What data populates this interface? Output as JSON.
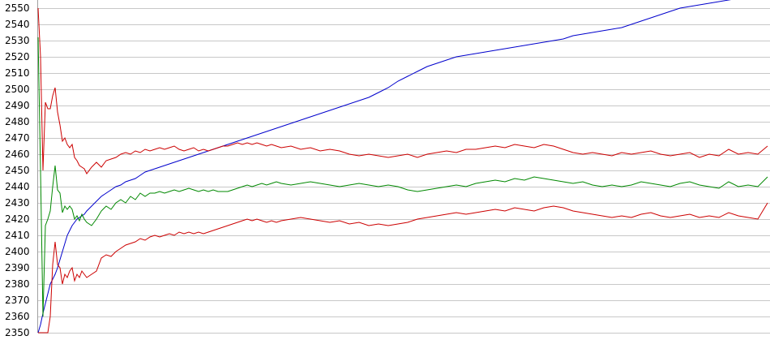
{
  "chart_data": {
    "type": "line",
    "title": "",
    "xlabel": "",
    "ylabel": "",
    "ylim": [
      2350,
      2550
    ],
    "yticks": [
      2550,
      2540,
      2530,
      2520,
      2510,
      2500,
      2490,
      2480,
      2470,
      2460,
      2450,
      2440,
      2430,
      2420,
      2410,
      2400,
      2390,
      2380,
      2370,
      2360,
      2350
    ],
    "grid": true,
    "legend": "none",
    "x": [
      0,
      1,
      2,
      3,
      4,
      5,
      6,
      7,
      8,
      9,
      10,
      11,
      12,
      13,
      14,
      15,
      16,
      17,
      18,
      19,
      20,
      22,
      24,
      26,
      28,
      30,
      32,
      34,
      36,
      38,
      40,
      42,
      44,
      46,
      48,
      50,
      52,
      54,
      56,
      58,
      60,
      62,
      64,
      66,
      68,
      70,
      72,
      74,
      76,
      78,
      80,
      82,
      84,
      86,
      88,
      90,
      92,
      94,
      96,
      98,
      100,
      104,
      108,
      112,
      116,
      120,
      124,
      128,
      132,
      136,
      140,
      144,
      148,
      152,
      156,
      160,
      164,
      168,
      172,
      176,
      180,
      184,
      188,
      192,
      196,
      200,
      204,
      208,
      212,
      216,
      220,
      224,
      228,
      232,
      236,
      240,
      244,
      248,
      252,
      256,
      260,
      264,
      268,
      272,
      276,
      280,
      284,
      288,
      292,
      296,
      300
    ],
    "series": [
      {
        "color": "#0000cc",
        "values": [
          2350,
          2355,
          2362,
          2368,
          2374,
          2380,
          2383,
          2386,
          2390,
          2395,
          2400,
          2405,
          2410,
          2413,
          2416,
          2418,
          2420,
          2421,
          2422,
          2423,
          2425,
          2428,
          2431,
          2434,
          2436,
          2438,
          2440,
          2441,
          2443,
          2444,
          2445,
          2447,
          2449,
          2450,
          2451,
          2452,
          2453,
          2454,
          2455,
          2456,
          2457,
          2458,
          2459,
          2460,
          2461,
          2462,
          2463,
          2464,
          2465,
          2466,
          2467,
          2468,
          2469,
          2470,
          2471,
          2472,
          2473,
          2474,
          2475,
          2476,
          2477,
          2479,
          2481,
          2483,
          2485,
          2487,
          2489,
          2491,
          2493,
          2495,
          2498,
          2501,
          2505,
          2508,
          2511,
          2514,
          2516,
          2518,
          2520,
          2521,
          2522,
          2523,
          2524,
          2525,
          2526,
          2527,
          2528,
          2529,
          2530,
          2531,
          2533,
          2534,
          2535,
          2536,
          2537,
          2538,
          2540,
          2542,
          2544,
          2546,
          2548,
          2550,
          2551,
          2552,
          2553,
          2554,
          2555,
          2556,
          2557,
          2558,
          2559
        ]
      },
      {
        "color": "#cc0000",
        "values": [
          2550,
          2520,
          2450,
          2492,
          2488,
          2488,
          2496,
          2501,
          2486,
          2478,
          2468,
          2470,
          2466,
          2464,
          2466,
          2458,
          2456,
          2453,
          2452,
          2451,
          2448,
          2452,
          2455,
          2452,
          2456,
          2457,
          2458,
          2460,
          2461,
          2460,
          2462,
          2461,
          2463,
          2462,
          2463,
          2464,
          2463,
          2464,
          2465,
          2463,
          2462,
          2463,
          2464,
          2462,
          2463,
          2462,
          2463,
          2464,
          2465,
          2465,
          2466,
          2467,
          2466,
          2467,
          2466,
          2467,
          2466,
          2465,
          2466,
          2465,
          2464,
          2465,
          2463,
          2464,
          2462,
          2463,
          2462,
          2460,
          2459,
          2460,
          2459,
          2458,
          2459,
          2460,
          2458,
          2460,
          2461,
          2462,
          2461,
          2463,
          2463,
          2464,
          2465,
          2464,
          2466,
          2465,
          2464,
          2466,
          2465,
          2463,
          2461,
          2460,
          2461,
          2460,
          2459,
          2461,
          2460,
          2461,
          2462,
          2460,
          2459,
          2460,
          2461,
          2458,
          2460,
          2459,
          2463,
          2460,
          2461,
          2460,
          2465
        ]
      },
      {
        "color": "#008800",
        "values": [
          2532,
          2450,
          2360,
          2416,
          2420,
          2425,
          2440,
          2453,
          2438,
          2436,
          2424,
          2428,
          2426,
          2428,
          2426,
          2420,
          2422,
          2419,
          2423,
          2420,
          2418,
          2416,
          2420,
          2425,
          2428,
          2426,
          2430,
          2432,
          2430,
          2434,
          2432,
          2436,
          2434,
          2436,
          2436,
          2437,
          2436,
          2437,
          2438,
          2437,
          2438,
          2439,
          2438,
          2437,
          2438,
          2437,
          2438,
          2437,
          2437,
          2437,
          2438,
          2439,
          2440,
          2441,
          2440,
          2441,
          2442,
          2441,
          2442,
          2443,
          2442,
          2441,
          2442,
          2443,
          2442,
          2441,
          2440,
          2441,
          2442,
          2441,
          2440,
          2441,
          2440,
          2438,
          2437,
          2438,
          2439,
          2440,
          2441,
          2440,
          2442,
          2443,
          2444,
          2443,
          2445,
          2444,
          2446,
          2445,
          2444,
          2443,
          2442,
          2443,
          2441,
          2440,
          2441,
          2440,
          2441,
          2443,
          2442,
          2441,
          2440,
          2442,
          2443,
          2441,
          2440,
          2439,
          2443,
          2440,
          2441,
          2440,
          2446
        ]
      },
      {
        "color": "#cc0000",
        "values": [
          2350,
          2350,
          2350,
          2350,
          2350,
          2360,
          2392,
          2406,
          2392,
          2390,
          2380,
          2386,
          2384,
          2388,
          2390,
          2382,
          2386,
          2384,
          2388,
          2386,
          2384,
          2386,
          2388,
          2396,
          2398,
          2397,
          2400,
          2402,
          2404,
          2405,
          2406,
          2408,
          2407,
          2409,
          2410,
          2409,
          2410,
          2411,
          2410,
          2412,
          2411,
          2412,
          2411,
          2412,
          2411,
          2412,
          2413,
          2414,
          2415,
          2416,
          2417,
          2418,
          2419,
          2420,
          2419,
          2420,
          2419,
          2418,
          2419,
          2418,
          2419,
          2420,
          2421,
          2420,
          2419,
          2418,
          2419,
          2417,
          2418,
          2416,
          2417,
          2416,
          2417,
          2418,
          2420,
          2421,
          2422,
          2423,
          2424,
          2423,
          2424,
          2425,
          2426,
          2425,
          2427,
          2426,
          2425,
          2427,
          2428,
          2427,
          2425,
          2424,
          2423,
          2422,
          2421,
          2422,
          2421,
          2423,
          2424,
          2422,
          2421,
          2422,
          2423,
          2421,
          2422,
          2421,
          2424,
          2422,
          2421,
          2420,
          2430
        ]
      }
    ]
  }
}
